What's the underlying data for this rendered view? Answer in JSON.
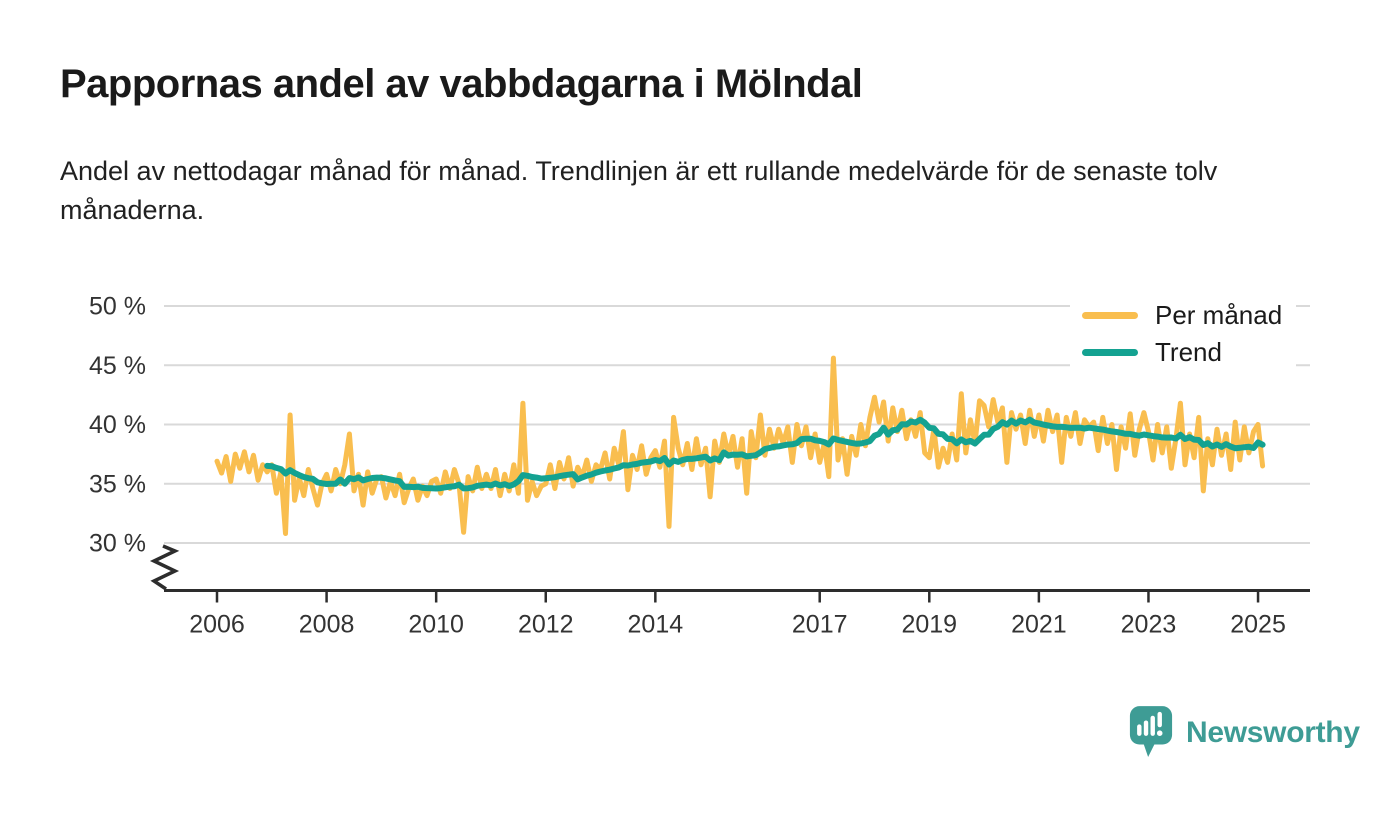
{
  "header": {
    "title": "Pappornas andel av vabbdagarna i Mölndal",
    "subtitle": "Andel av nettodagar månad för månad. Trendlinjen är ett rullande medelvärde för de senaste tolv månaderna."
  },
  "legend": {
    "items": [
      {
        "label": "Per månad",
        "color": "#F9BE4F"
      },
      {
        "label": "Trend",
        "color": "#14A291"
      }
    ]
  },
  "footer": {
    "brand": "Newsworthy",
    "brand_color": "#3E9C95"
  },
  "chart_data": {
    "type": "line",
    "title": "Pappornas andel av vabbdagarna i Mölndal",
    "subtitle": "Andel av nettodagar månad för månad. Trendlinjen är ett rullande medelvärde för de senaste tolv månaderna.",
    "x_unit": "month",
    "start": "2006-01",
    "end": "2025-02",
    "grid": "horizontal",
    "legend_position": "top-right",
    "y_axis": {
      "axis_break": true,
      "range_shown": [
        30,
        50
      ],
      "ticks": [
        {
          "value": 50,
          "label": "50 %"
        },
        {
          "value": 45,
          "label": "45 %"
        },
        {
          "value": 40,
          "label": "40 %"
        },
        {
          "value": 35,
          "label": "35 %"
        },
        {
          "value": 30,
          "label": "30 %"
        }
      ]
    },
    "x_axis": {
      "tick_years": [
        2006,
        2008,
        2010,
        2012,
        2014,
        2017,
        2019,
        2021,
        2023,
        2025
      ]
    },
    "series": [
      {
        "name": "Per månad",
        "color": "#F9BE4F",
        "frequency": "monthly",
        "unit": "%",
        "values": [
          36.9,
          35.9,
          37.3,
          35.2,
          37.5,
          36.3,
          37.7,
          36.0,
          37.4,
          35.3,
          36.6,
          36.0,
          36.6,
          34.2,
          36.0,
          30.8,
          40.8,
          33.6,
          35.5,
          34.0,
          36.2,
          34.6,
          33.2,
          35.0,
          35.8,
          34.4,
          36.2,
          35.0,
          36.6,
          39.2,
          34.4,
          35.8,
          33.2,
          36.0,
          34.2,
          35.4,
          35.6,
          33.8,
          35.2,
          34.0,
          35.8,
          33.4,
          34.6,
          35.4,
          33.6,
          34.8,
          34.0,
          35.2,
          35.4,
          34.2,
          36.0,
          34.6,
          36.2,
          35.0,
          30.9,
          35.6,
          34.4,
          36.4,
          34.6,
          35.8,
          34.6,
          36.2,
          34.0,
          35.8,
          34.4,
          36.6,
          34.2,
          41.8,
          33.6,
          35.2,
          34.0,
          34.8,
          35.0,
          36.6,
          34.6,
          36.8,
          35.4,
          37.2,
          34.8,
          36.4,
          35.6,
          37.0,
          35.2,
          36.6,
          36.2,
          37.6,
          35.4,
          38.0,
          36.6,
          39.4,
          34.5,
          37.4,
          36.2,
          38.2,
          35.8,
          37.2,
          37.8,
          36.4,
          38.6,
          31.4,
          40.6,
          38.0,
          36.6,
          38.4,
          36.2,
          38.8,
          36.6,
          38.0,
          33.9,
          38.6,
          36.8,
          39.2,
          37.4,
          39.0,
          36.4,
          38.8,
          34.2,
          39.4,
          37.2,
          40.8,
          37.4,
          39.6,
          38.0,
          39.6,
          38.4,
          39.8,
          36.8,
          40.0,
          38.2,
          39.8,
          37.2,
          39.2,
          36.8,
          38.4,
          35.6,
          45.6,
          37.0,
          38.8,
          35.8,
          39.0,
          37.4,
          40.0,
          38.2,
          40.6,
          42.3,
          40.2,
          41.9,
          38.6,
          41.4,
          39.4,
          41.2,
          38.8,
          40.4,
          39.0,
          41.0,
          37.6,
          37.2,
          39.6,
          36.4,
          38.0,
          36.8,
          39.2,
          37.0,
          42.6,
          37.6,
          40.4,
          38.4,
          42.0,
          41.6,
          39.8,
          42.1,
          40.2,
          41.4,
          36.8,
          41.0,
          39.6,
          40.8,
          38.4,
          41.2,
          39.0,
          40.8,
          38.6,
          41.2,
          39.4,
          40.8,
          36.8,
          40.6,
          39.0,
          41.0,
          38.4,
          40.4,
          39.8,
          40.2,
          37.8,
          40.6,
          38.4,
          40.0,
          36.2,
          39.8,
          38.0,
          40.9,
          37.4,
          39.6,
          41.0,
          39.4,
          37.0,
          40.0,
          37.6,
          39.8,
          36.3,
          38.8,
          41.8,
          36.6,
          39.2,
          37.2,
          40.6,
          34.4,
          38.8,
          36.6,
          39.6,
          37.4,
          39.2,
          36.2,
          40.2,
          37.0,
          39.8,
          37.6,
          39.4,
          40.0,
          36.5
        ]
      },
      {
        "name": "Trend",
        "color": "#14A291",
        "derived": "rolling_mean_12_months",
        "computed_from": "Per månad"
      }
    ]
  }
}
